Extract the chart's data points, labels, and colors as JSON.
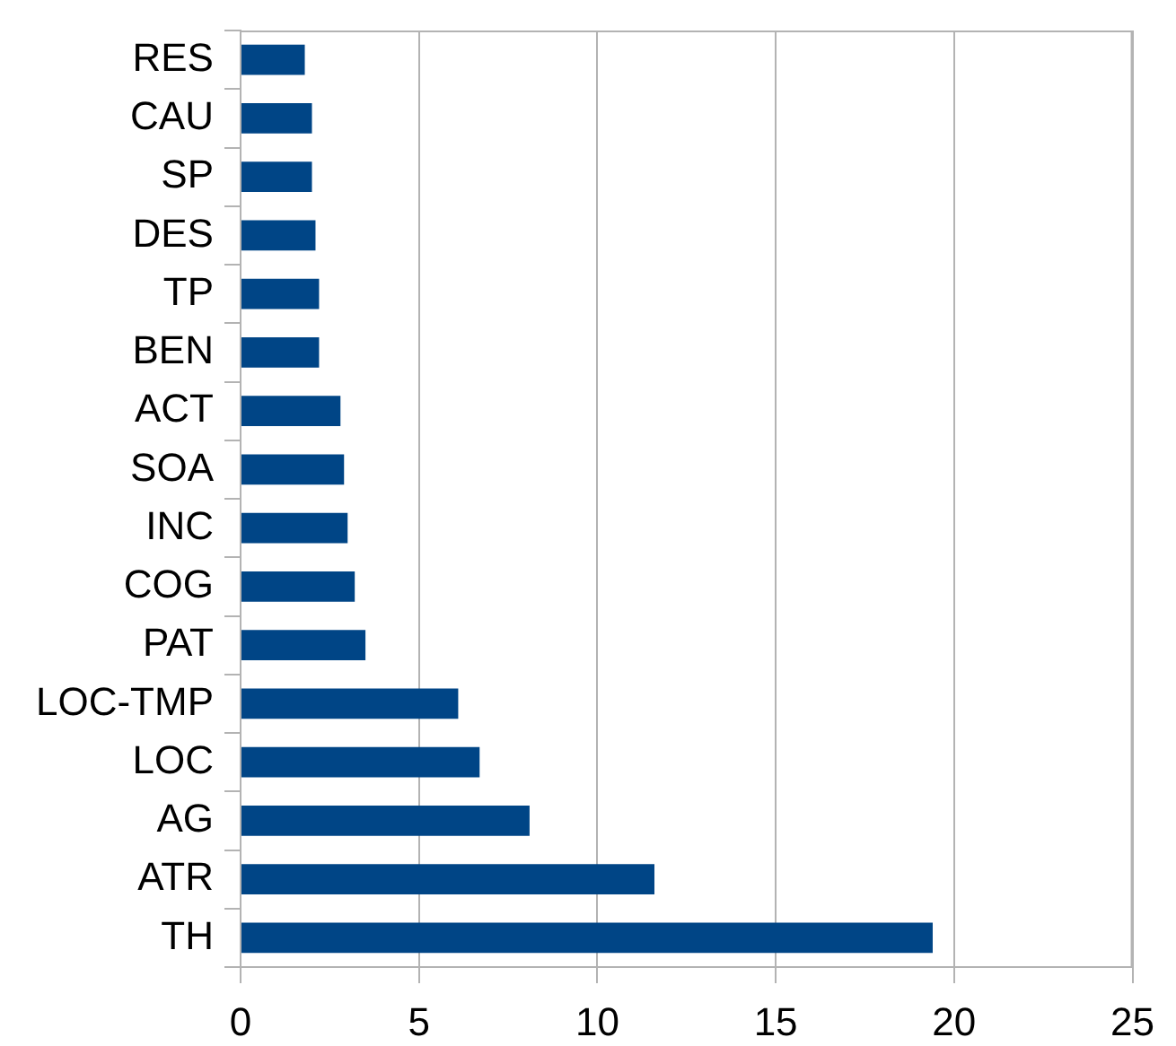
{
  "chart_data": {
    "type": "bar",
    "orientation": "horizontal",
    "categories": [
      "RES",
      "CAU",
      "SP",
      "DES",
      "TP",
      "BEN",
      "ACT",
      "SOA",
      "INC",
      "COG",
      "PAT",
      "LOC-TMP",
      "LOC",
      "AG",
      "ATR",
      "TH"
    ],
    "values": [
      1.8,
      2.0,
      2.0,
      2.1,
      2.2,
      2.2,
      2.8,
      2.9,
      3.0,
      3.2,
      3.5,
      6.1,
      6.7,
      8.1,
      11.6,
      19.4
    ],
    "color": "#004586",
    "xlim": [
      0,
      25
    ],
    "xticks": [
      0,
      5,
      10,
      15,
      20,
      25
    ],
    "grid": "x"
  }
}
